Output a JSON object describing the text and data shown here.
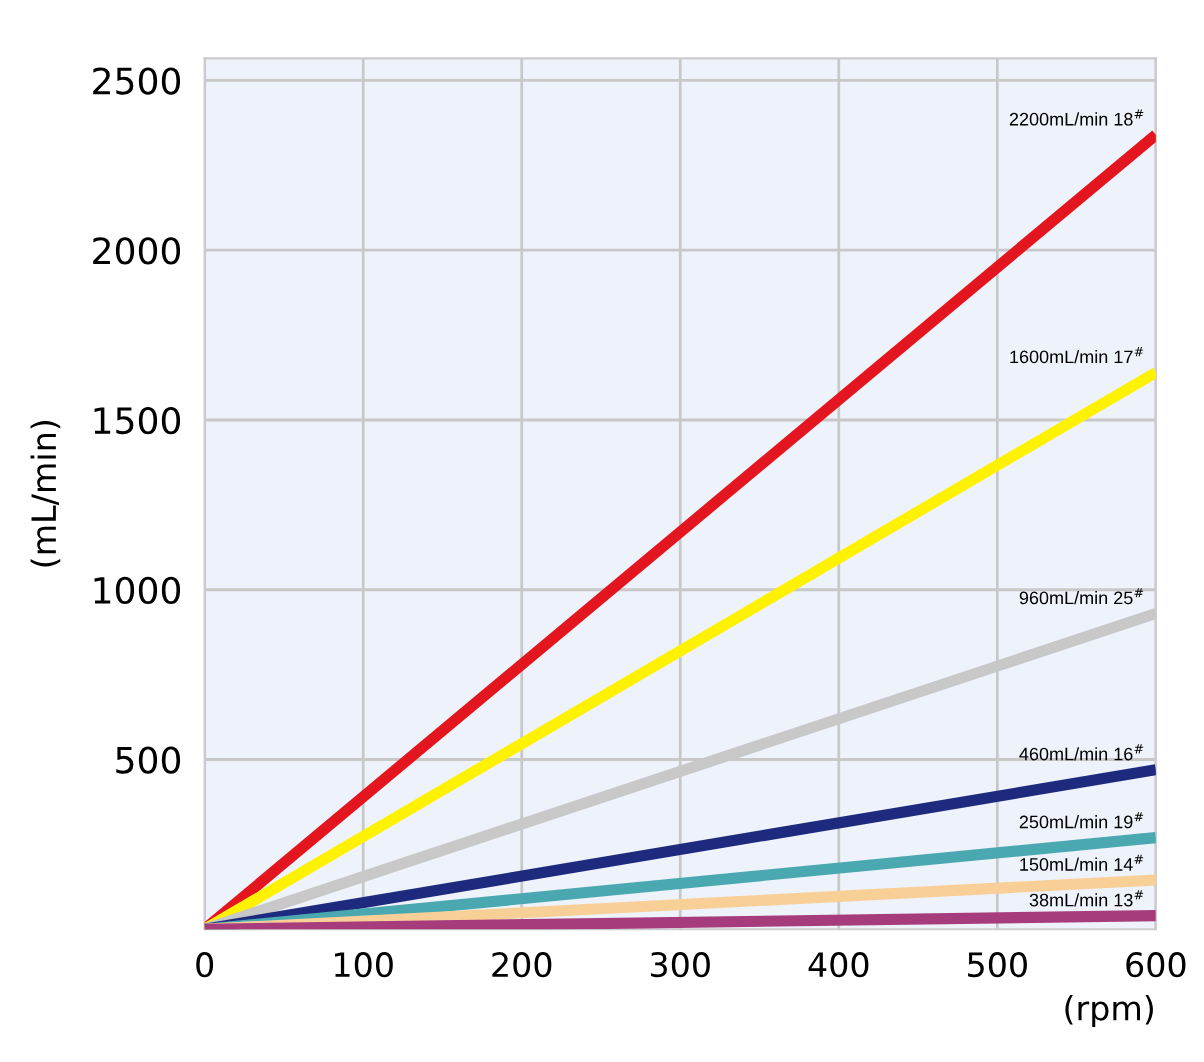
{
  "chart_data": {
    "type": "line",
    "xlabel": "(rpm)",
    "ylabel": "(mL/min)",
    "x": [
      0,
      600
    ],
    "series": [
      {
        "name": "2200mL/min 18$^{#}$",
        "color": "#e3151f",
        "values": [
          0,
          2340
        ]
      },
      {
        "name": "1600mL/min 17$^{#}$",
        "color": "#fff200",
        "values": [
          0,
          1640
        ]
      },
      {
        "name": "960mL/min 25$^{#}$",
        "color": "#c8c8c8",
        "values": [
          0,
          930
        ]
      },
      {
        "name": "460mL/min 16$^{#}$",
        "color": "#1e2a7e",
        "values": [
          0,
          470
        ]
      },
      {
        "name": "250mL/min 19$^{#}$",
        "color": "#4aa8b0",
        "values": [
          0,
          270
        ]
      },
      {
        "name": "150mL/min 14$^{#}$",
        "color": "#f9cf98",
        "values": [
          0,
          145
        ]
      },
      {
        "name": "38mL/min 13$^{#}$",
        "color": "#a63c7c",
        "values": [
          0,
          40
        ]
      }
    ],
    "xlim": [
      0,
      600
    ],
    "ylim": [
      0,
      2565
    ],
    "xticks": [
      0,
      100,
      200,
      300,
      400,
      500,
      600
    ],
    "yticks": [
      500,
      1000,
      1500,
      2000,
      2500
    ],
    "grid": true,
    "marker": "none",
    "line_style": "solid"
  }
}
